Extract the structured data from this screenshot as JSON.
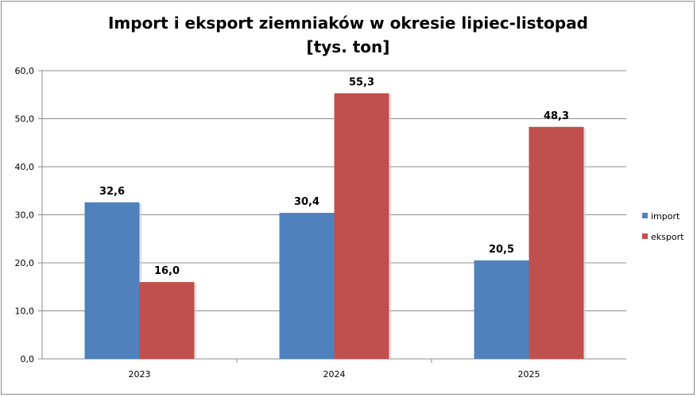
{
  "chart_data": {
    "type": "bar",
    "title_lines": [
      "Import i eksport ziemniaków w okresie lipiec-listopad",
      "[tys. ton]"
    ],
    "categories": [
      "2023",
      "2024",
      "2025"
    ],
    "series": [
      {
        "name": "import",
        "values": [
          32.6,
          30.4,
          20.5
        ],
        "labels": [
          "32,6",
          "30,4",
          "20,5"
        ],
        "color": "#4f81bd"
      },
      {
        "name": "eksport",
        "values": [
          16.0,
          55.3,
          48.3
        ],
        "labels": [
          "16,0",
          "55,3",
          "48,3"
        ],
        "color": "#c0504d"
      }
    ],
    "ylim": [
      0,
      60
    ],
    "yticks": [
      0,
      10,
      20,
      30,
      40,
      50,
      60
    ],
    "ytick_labels": [
      "0,0",
      "10,0",
      "20,0",
      "30,0",
      "40,0",
      "50,0",
      "60,0"
    ],
    "grid": true,
    "legend_position": "right"
  }
}
